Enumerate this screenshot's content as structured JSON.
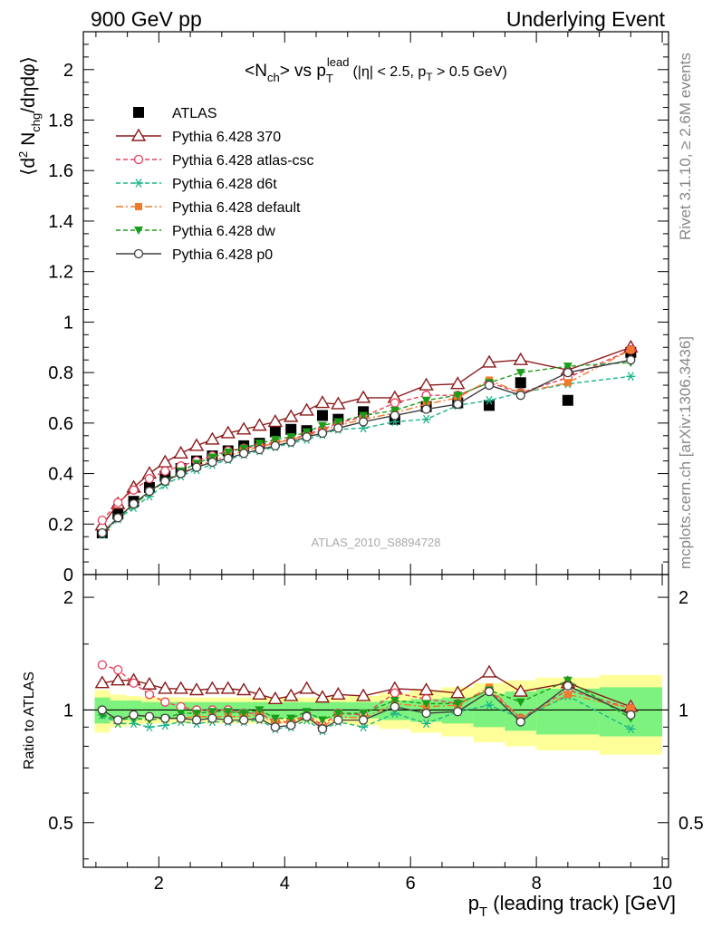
{
  "header": {
    "left": "900 GeV pp",
    "right": "Underlying Event"
  },
  "side_labels": {
    "rivet": "Rivet 3.1.10, ≥ 2.6M events",
    "mcplots": "mcplots.cern.ch [arXiv:1306.3436]"
  },
  "watermark": "ATLAS_2010_S8894728",
  "chart_data": [
    {
      "type": "line",
      "title_parts": {
        "lhs": "<N",
        "lhs_sub": "ch",
        "mid": "> vs p",
        "mid_sup": "lead",
        "mid_sub": "T",
        "cut": "(|η| < 2.5, p",
        "cut_sub": "T",
        "cut_end": " > 0.5 GeV)"
      },
      "ylabel_parts": {
        "a": "⟨d",
        "sup": "2",
        "b": " N",
        "sub": "chg",
        "c": "/dηdφ⟩"
      },
      "xlim": [
        0.8,
        10.1
      ],
      "ylim": [
        0,
        2.15
      ],
      "yticks": [
        0,
        0.2,
        0.4,
        0.6,
        0.8,
        1,
        1.2,
        1.4,
        1.6,
        1.8,
        2
      ],
      "ytick_labels": [
        "0",
        "0.2",
        "0.4",
        "0.6",
        "0.8",
        "1",
        "1.2",
        "1.4",
        "1.6",
        "1.8",
        "2"
      ],
      "x": [
        1.1,
        1.35,
        1.6,
        1.85,
        2.1,
        2.35,
        2.6,
        2.85,
        3.1,
        3.35,
        3.6,
        3.85,
        4.1,
        4.35,
        4.6,
        4.85,
        5.25,
        5.75,
        6.25,
        6.75,
        7.25,
        7.75,
        8.5,
        9.5
      ],
      "series": [
        {
          "name": "ATLAS",
          "color": "#000000",
          "marker": "square",
          "line": "none",
          "values": [
            0.165,
            0.24,
            0.29,
            0.345,
            0.39,
            0.42,
            0.45,
            0.47,
            0.49,
            0.51,
            0.52,
            0.565,
            0.575,
            0.57,
            0.63,
            0.615,
            0.645,
            0.615,
            0.665,
            0.68,
            0.67,
            0.76,
            0.69,
            0.88
          ]
        },
        {
          "name": "Pythia 6.428 370",
          "color": "#8b1a1a",
          "marker": "triangle-open",
          "line": "solid",
          "values": [
            0.195,
            0.28,
            0.345,
            0.4,
            0.445,
            0.48,
            0.51,
            0.535,
            0.56,
            0.575,
            0.59,
            0.605,
            0.625,
            0.65,
            0.68,
            0.675,
            0.7,
            0.7,
            0.75,
            0.755,
            0.84,
            0.85,
            0.81,
            0.9
          ]
        },
        {
          "name": "Pythia 6.428 atlas-csc",
          "color": "#e8405a",
          "marker": "circle-open",
          "line": "dashed",
          "values": [
            0.215,
            0.285,
            0.335,
            0.38,
            0.41,
            0.43,
            0.45,
            0.47,
            0.49,
            0.5,
            0.51,
            0.525,
            0.535,
            0.555,
            0.575,
            0.6,
            0.625,
            0.68,
            0.71,
            0.71,
            0.76,
            0.72,
            0.78,
            0.89
          ]
        },
        {
          "name": "Pythia 6.428 d6t",
          "color": "#1ab58a",
          "marker": "asterisk",
          "line": "dashed",
          "values": [
            0.16,
            0.22,
            0.265,
            0.31,
            0.355,
            0.39,
            0.415,
            0.435,
            0.455,
            0.475,
            0.49,
            0.505,
            0.52,
            0.535,
            0.555,
            0.575,
            0.58,
            0.605,
            0.615,
            0.67,
            0.69,
            0.72,
            0.755,
            0.785
          ]
        },
        {
          "name": "Pythia 6.428 default",
          "color": "#f07a2a",
          "marker": "square-filled",
          "line": "dashdot",
          "values": [
            0.165,
            0.225,
            0.28,
            0.33,
            0.37,
            0.4,
            0.43,
            0.45,
            0.47,
            0.49,
            0.505,
            0.52,
            0.535,
            0.55,
            0.57,
            0.59,
            0.615,
            0.64,
            0.675,
            0.7,
            0.77,
            0.72,
            0.76,
            0.89
          ]
        },
        {
          "name": "Pythia 6.428 dw",
          "color": "#1a9e1a",
          "marker": "triangle-down-filled",
          "line": "dashed",
          "values": [
            0.16,
            0.225,
            0.275,
            0.325,
            0.37,
            0.41,
            0.44,
            0.465,
            0.485,
            0.5,
            0.52,
            0.535,
            0.545,
            0.565,
            0.59,
            0.605,
            0.63,
            0.65,
            0.69,
            0.71,
            0.76,
            0.8,
            0.825,
            0.84
          ]
        },
        {
          "name": "Pythia 6.428 p0",
          "color": "#404040",
          "marker": "circle-open",
          "line": "solid",
          "values": [
            0.165,
            0.225,
            0.28,
            0.33,
            0.37,
            0.4,
            0.425,
            0.445,
            0.46,
            0.48,
            0.495,
            0.51,
            0.525,
            0.545,
            0.56,
            0.58,
            0.605,
            0.63,
            0.655,
            0.675,
            0.75,
            0.71,
            0.8,
            0.85
          ]
        }
      ]
    },
    {
      "type": "line",
      "ylabel": "Ratio to ATLAS",
      "xlabel_parts": {
        "a": "p",
        "sub": "T",
        "b": " (leading track) [GeV]"
      },
      "xlim": [
        0.8,
        10.1
      ],
      "ylim_log": [
        0.38,
        2.3
      ],
      "yticks": [
        0.5,
        1,
        2
      ],
      "ytick_labels": [
        "0.5",
        "1",
        "2"
      ],
      "xticks": [
        2,
        4,
        6,
        8,
        10
      ],
      "xtick_labels": [
        "2",
        "4",
        "6",
        "8",
        "10"
      ],
      "bands": {
        "edges": [
          0.98,
          1.225,
          1.475,
          1.725,
          1.975,
          2.225,
          2.475,
          2.725,
          2.975,
          3.225,
          3.475,
          3.725,
          3.975,
          4.225,
          4.475,
          4.725,
          5.0,
          5.5,
          6.0,
          6.5,
          7.0,
          7.5,
          8.0,
          9.0,
          10.0
        ],
        "stat_half": [
          0.08,
          0.06,
          0.06,
          0.05,
          0.05,
          0.05,
          0.05,
          0.05,
          0.05,
          0.05,
          0.05,
          0.05,
          0.05,
          0.05,
          0.05,
          0.05,
          0.05,
          0.06,
          0.07,
          0.08,
          0.1,
          0.12,
          0.14,
          0.15
        ],
        "total_half": [
          0.13,
          0.1,
          0.09,
          0.08,
          0.08,
          0.08,
          0.08,
          0.08,
          0.08,
          0.08,
          0.08,
          0.08,
          0.08,
          0.08,
          0.08,
          0.08,
          0.09,
          0.11,
          0.13,
          0.15,
          0.18,
          0.2,
          0.22,
          0.24
        ],
        "inner_color": "#7ef27e",
        "outer_color": "#ffff99"
      },
      "series": [
        {
          "name": "Pythia 6.428 370",
          "values": [
            1.18,
            1.2,
            1.2,
            1.17,
            1.14,
            1.14,
            1.13,
            1.14,
            1.14,
            1.13,
            1.1,
            1.07,
            1.09,
            1.14,
            1.08,
            1.1,
            1.09,
            1.14,
            1.13,
            1.11,
            1.26,
            1.12,
            1.18,
            1.02
          ]
        },
        {
          "name": "Pythia 6.428 atlas-csc",
          "values": [
            1.32,
            1.28,
            1.18,
            1.1,
            1.05,
            1.02,
            1.0,
            1.0,
            1.0,
            0.98,
            0.98,
            0.93,
            0.93,
            0.97,
            0.91,
            0.98,
            0.97,
            1.11,
            1.07,
            1.04,
            1.13,
            0.95,
            1.13,
            1.01
          ]
        },
        {
          "name": "Pythia 6.428 d6t",
          "values": [
            0.97,
            0.92,
            0.92,
            0.9,
            0.91,
            0.93,
            0.92,
            0.93,
            0.93,
            0.93,
            0.94,
            0.89,
            0.9,
            0.94,
            0.88,
            0.93,
            0.9,
            0.98,
            0.92,
            0.99,
            1.03,
            0.95,
            1.09,
            0.89
          ]
        },
        {
          "name": "Pythia 6.428 default",
          "values": [
            1.0,
            0.94,
            0.97,
            0.96,
            0.95,
            0.95,
            0.96,
            0.96,
            0.96,
            0.96,
            0.97,
            0.92,
            0.93,
            0.96,
            0.9,
            0.96,
            0.95,
            1.04,
            1.02,
            1.03,
            1.15,
            0.95,
            1.1,
            1.01
          ]
        },
        {
          "name": "Pythia 6.428 dw",
          "values": [
            0.97,
            0.94,
            0.95,
            0.94,
            0.95,
            0.98,
            0.98,
            0.99,
            0.99,
            0.98,
            1.0,
            0.95,
            0.95,
            0.99,
            0.94,
            0.98,
            0.98,
            1.06,
            1.04,
            1.04,
            1.13,
            1.05,
            1.2,
            0.95
          ]
        },
        {
          "name": "Pythia 6.428 p0",
          "values": [
            1.0,
            0.94,
            0.97,
            0.96,
            0.95,
            0.95,
            0.94,
            0.95,
            0.94,
            0.94,
            0.95,
            0.9,
            0.91,
            0.96,
            0.89,
            0.94,
            0.94,
            1.02,
            0.98,
            0.99,
            1.12,
            0.93,
            1.16,
            0.97
          ]
        }
      ]
    }
  ]
}
